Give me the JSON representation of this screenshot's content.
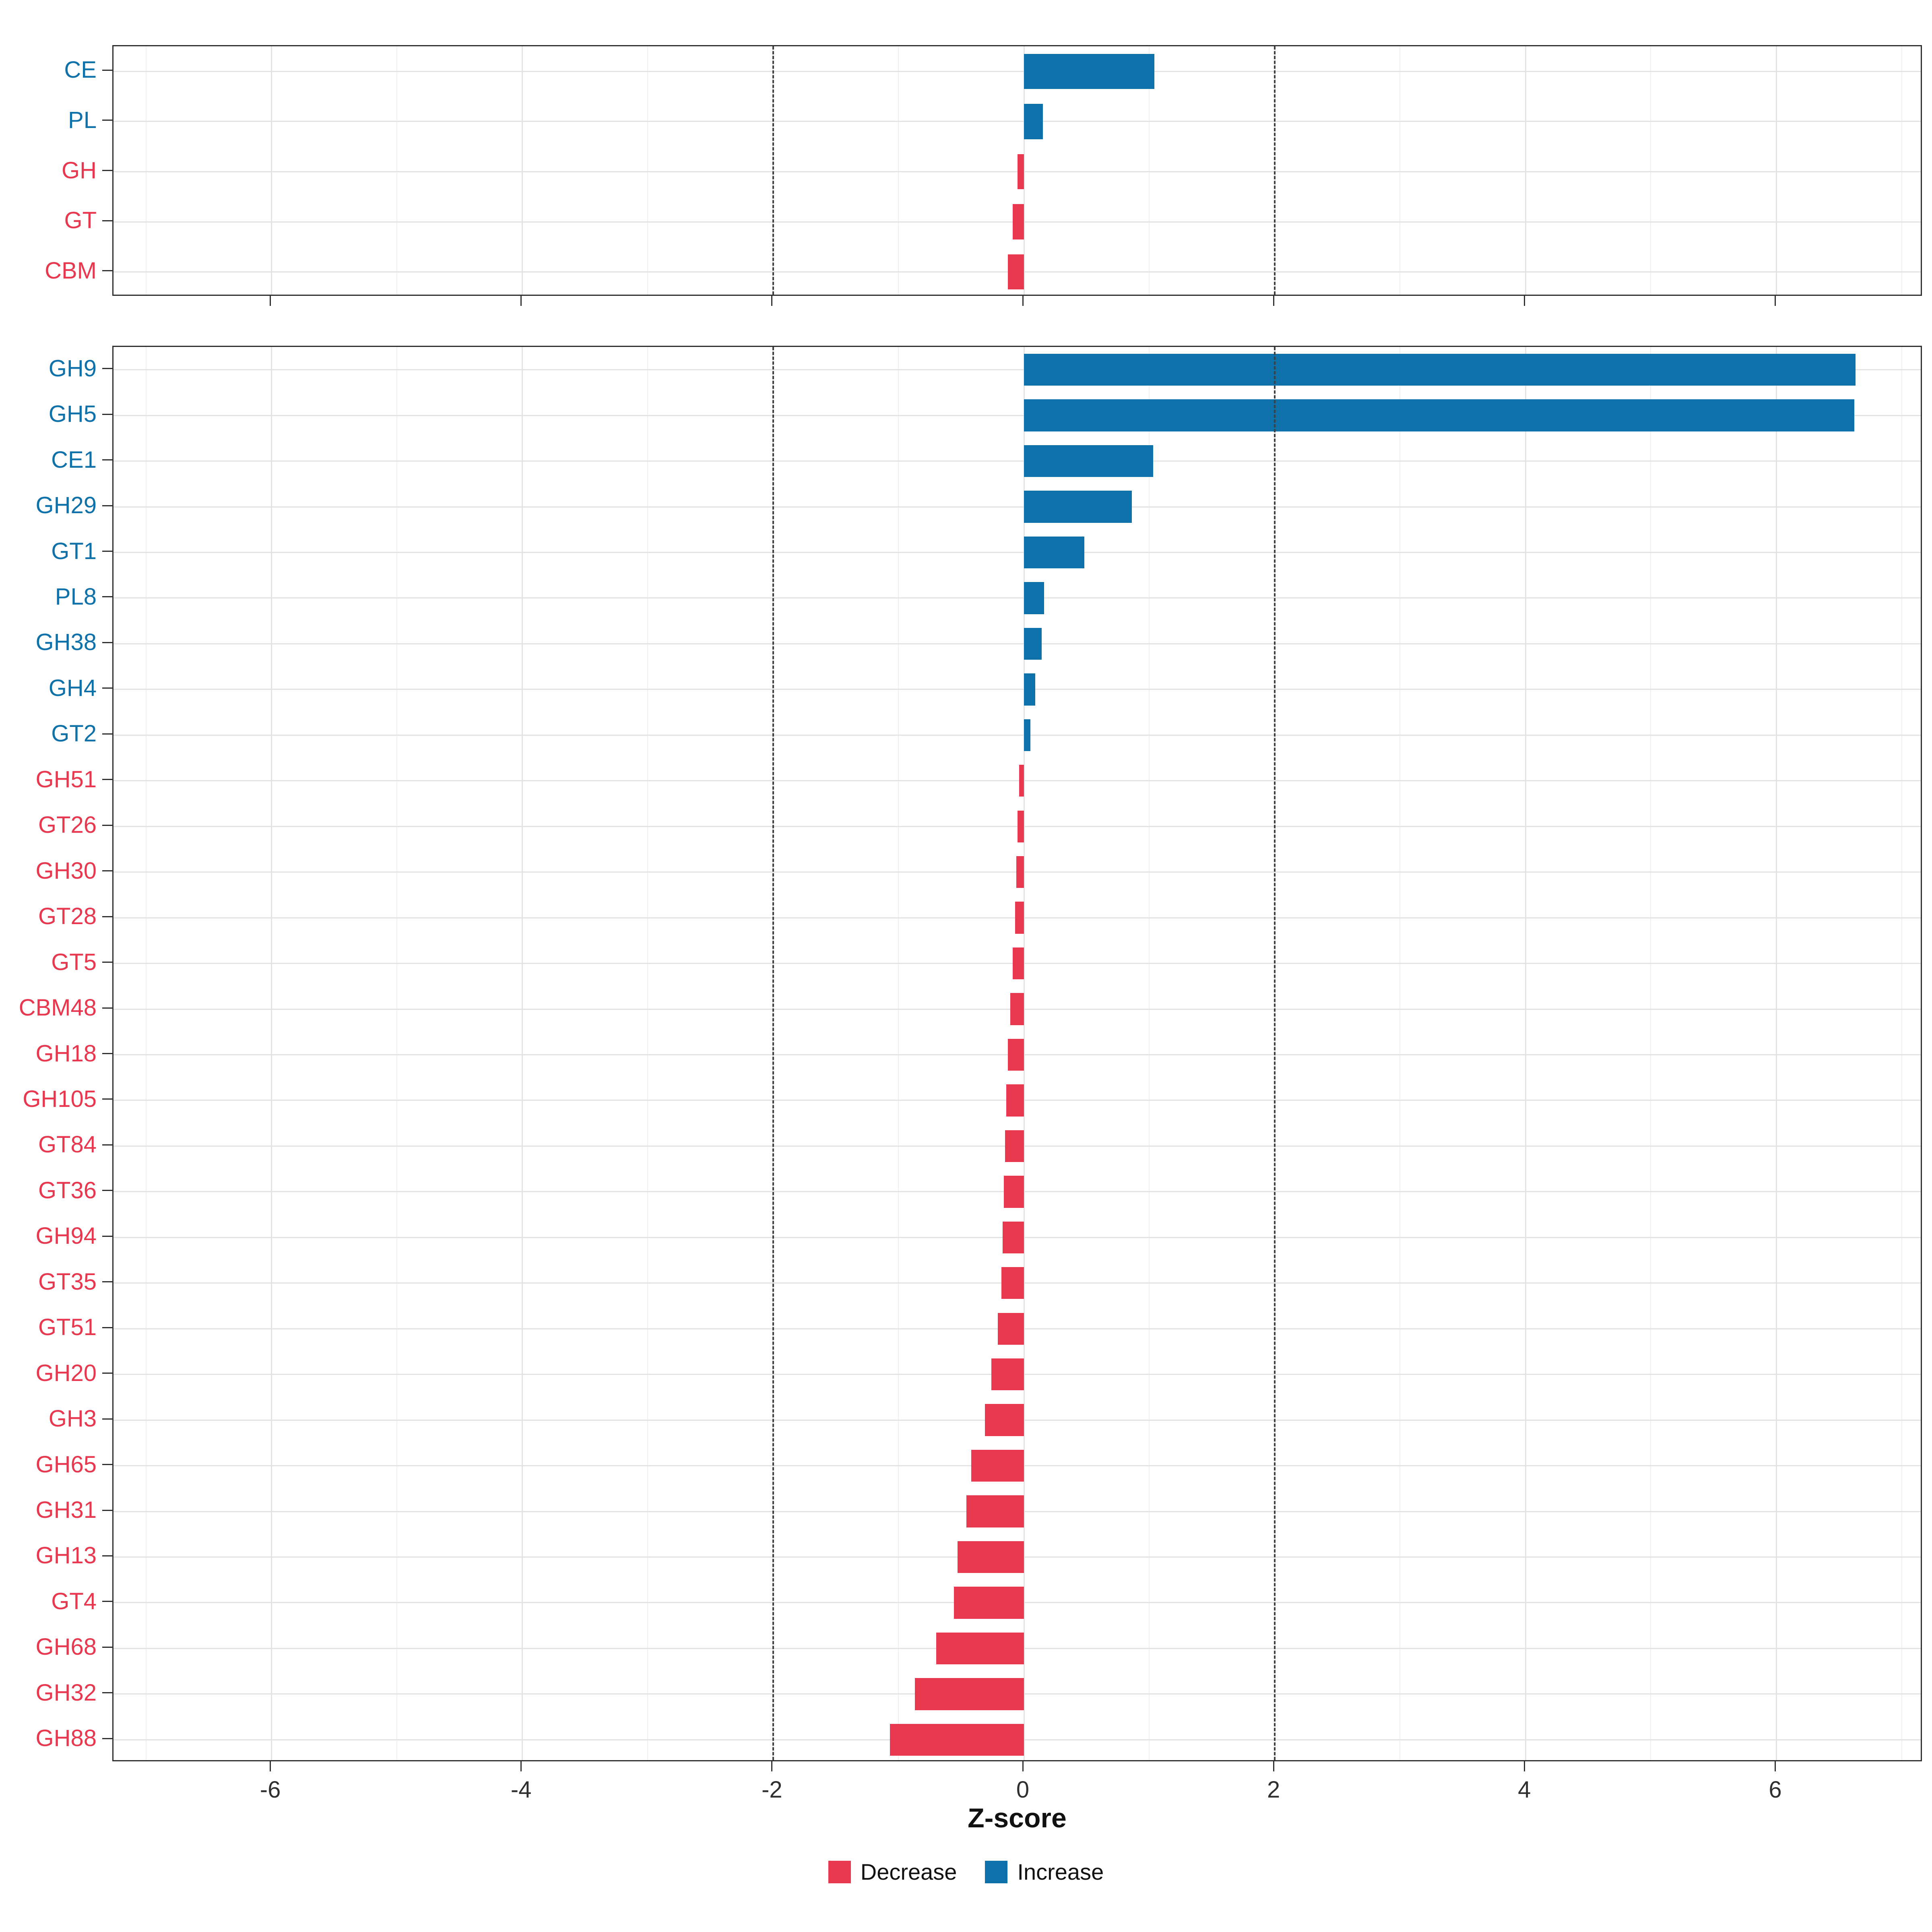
{
  "figure": {
    "xlabel": "Z-score",
    "x_ticks": [
      -6,
      -4,
      -2,
      0,
      2,
      4,
      6
    ],
    "xlim": [
      -7.26,
      7.17
    ],
    "dashed_lines_x": [
      -2,
      2
    ],
    "grid": true,
    "legend_position": "bottom",
    "colors": {
      "Increase": "#0F71A9",
      "Decrease": "#E8384F"
    },
    "legend": [
      {
        "label": "Decrease",
        "group": "Decrease"
      },
      {
        "label": "Increase",
        "group": "Increase"
      }
    ]
  },
  "chart_data": [
    {
      "type": "bar",
      "orientation": "horizontal",
      "panel": "top",
      "categories": [
        "CE",
        "PL",
        "GH",
        "GT",
        "CBM"
      ],
      "values": [
        1.04,
        0.15,
        -0.05,
        -0.09,
        -0.13
      ],
      "groups": [
        "Increase",
        "Increase",
        "Decrease",
        "Decrease",
        "Decrease"
      ],
      "xlim": [
        -7.26,
        7.17
      ]
    },
    {
      "type": "bar",
      "orientation": "horizontal",
      "panel": "bottom",
      "categories": [
        "GH9",
        "GH5",
        "CE1",
        "GH29",
        "GT1",
        "PL8",
        "GH38",
        "GH4",
        "GT2",
        "GH51",
        "GT26",
        "GH30",
        "GT28",
        "GT5",
        "CBM48",
        "GH18",
        "GH105",
        "GT84",
        "GT36",
        "GH94",
        "GT35",
        "GT51",
        "GH20",
        "GH3",
        "GH65",
        "GH31",
        "GH13",
        "GT4",
        "GH68",
        "GH32",
        "GH88"
      ],
      "values": [
        6.63,
        6.62,
        1.03,
        0.86,
        0.48,
        0.16,
        0.14,
        0.09,
        0.05,
        -0.04,
        -0.05,
        -0.06,
        -0.07,
        -0.09,
        -0.11,
        -0.13,
        -0.14,
        -0.15,
        -0.16,
        -0.17,
        -0.18,
        -0.21,
        -0.26,
        -0.31,
        -0.42,
        -0.46,
        -0.53,
        -0.56,
        -0.7,
        -0.87,
        -1.07
      ],
      "groups": [
        "Increase",
        "Increase",
        "Increase",
        "Increase",
        "Increase",
        "Increase",
        "Increase",
        "Increase",
        "Increase",
        "Decrease",
        "Decrease",
        "Decrease",
        "Decrease",
        "Decrease",
        "Decrease",
        "Decrease",
        "Decrease",
        "Decrease",
        "Decrease",
        "Decrease",
        "Decrease",
        "Decrease",
        "Decrease",
        "Decrease",
        "Decrease",
        "Decrease",
        "Decrease",
        "Decrease",
        "Decrease",
        "Decrease",
        "Decrease"
      ],
      "xlim": [
        -7.26,
        7.17
      ]
    }
  ]
}
